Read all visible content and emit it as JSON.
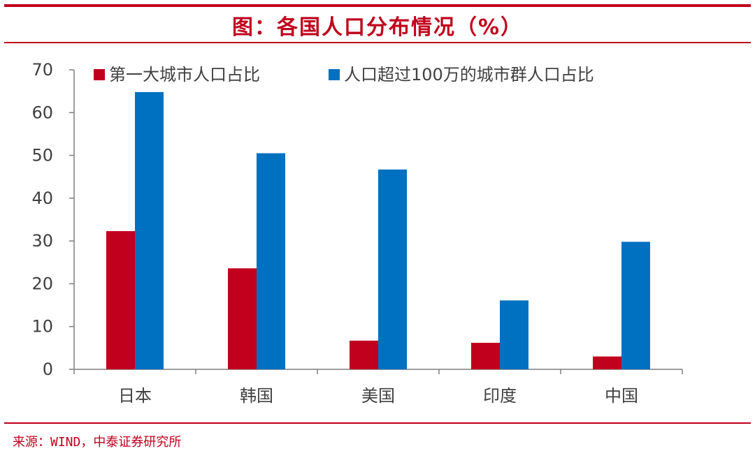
{
  "header": {
    "title": "图：各国人口分布情况（%）"
  },
  "footer": {
    "source": "来源：WIND，中泰证券研究所"
  },
  "colors": {
    "accent": "#c0001d",
    "series1": "#c0001d",
    "series2": "#0070c0",
    "axis": "#7f7f7f",
    "text": "#404040"
  },
  "chart_data": {
    "type": "bar",
    "title": "图：各国人口分布情况（%）",
    "xlabel": "",
    "ylabel": "",
    "ylim": [
      0,
      70
    ],
    "yticks": [
      0,
      10,
      20,
      30,
      40,
      50,
      60,
      70
    ],
    "grid": false,
    "legend_position": "top",
    "categories": [
      "日本",
      "韩国",
      "美国",
      "印度",
      "中国"
    ],
    "series": [
      {
        "name": "第一大城市人口占比",
        "color": "#c0001d",
        "values": [
          32.3,
          23.6,
          6.7,
          6.2,
          3.0
        ]
      },
      {
        "name": "人口超过100万的城市群人口占比",
        "color": "#0070c0",
        "values": [
          64.8,
          50.5,
          46.7,
          16.1,
          29.8
        ]
      }
    ]
  }
}
